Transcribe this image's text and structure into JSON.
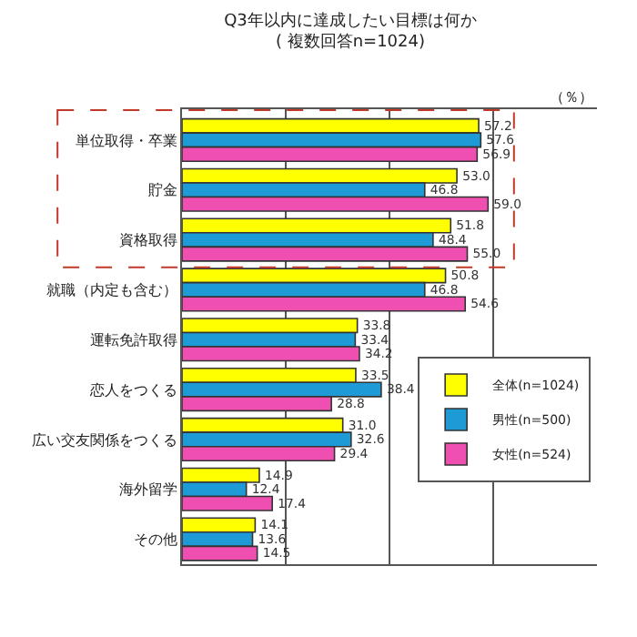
{
  "chart_data": {
    "type": "bar",
    "orientation": "horizontal",
    "title": "Q3年以内に達成したい目標は何か",
    "subtitle": "( 複数回答n=1024)",
    "categories": [
      "単位取得・卒業",
      "貯金",
      "資格取得",
      "就職（内定も含む）",
      "運転免許取得",
      "恋人をつくる",
      "広い交友関係をつくる",
      "海外留学",
      "その他"
    ],
    "series": [
      {
        "name": "全体(n=1024)",
        "color": "#ffff00",
        "values": [
          57.2,
          53.0,
          51.8,
          50.8,
          33.8,
          33.5,
          31.0,
          14.9,
          14.1
        ],
        "value_labels": [
          "57.2",
          "53.0",
          "51.8",
          "50.8",
          "33.8",
          "33.5",
          "31.0",
          "14.9",
          "14.1"
        ]
      },
      {
        "name": "男性(n=500)",
        "color": "#1e9ad6",
        "values": [
          57.6,
          46.8,
          48.4,
          46.8,
          33.4,
          38.4,
          32.6,
          12.4,
          13.6
        ],
        "value_labels": [
          "57.6",
          "46.8",
          "48.4",
          "46.8",
          "33.4",
          "38.4",
          "32.6",
          "12.4",
          "13.6"
        ]
      },
      {
        "name": "女性(n=524)",
        "color": "#ee4fb0",
        "values": [
          56.9,
          59.0,
          55.0,
          54.6,
          34.2,
          28.8,
          29.4,
          17.4,
          14.5
        ],
        "value_labels": [
          "56.9",
          "59.0",
          "55.0",
          "54.6",
          "34.2",
          "28.8",
          "29.4",
          "17.4",
          "14.5"
        ]
      }
    ],
    "xlim": [
      0,
      80
    ],
    "xticks": [
      {
        "value": 0,
        "label": null
      },
      {
        "value": 20,
        "label": null
      },
      {
        "value": 40,
        "label": null
      },
      {
        "value": 60,
        "label": null
      }
    ],
    "tick_labels": "y",
    "grid": "x",
    "legend": "bottom right",
    "annotations": [
      "（％）"
    ]
  }
}
